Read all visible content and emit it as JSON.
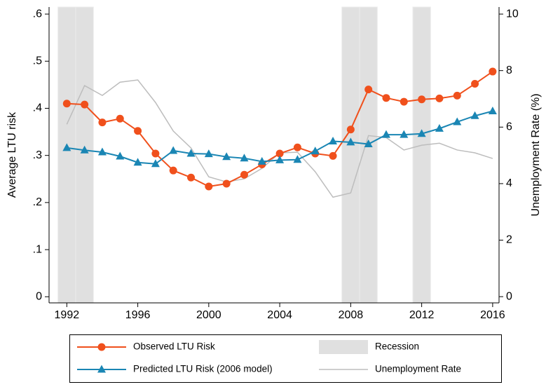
{
  "chart_data": {
    "type": "line",
    "y_label": "Average LTU risk",
    "y2_label": "Unemployment Rate (%)",
    "xlim": [
      1991,
      2016.36
    ],
    "xticks": [
      1992,
      1996,
      2000,
      2004,
      2008,
      2012,
      2016
    ],
    "ylim": [
      -0.013,
      0.615
    ],
    "yticks": [
      0,
      {
        "value": 0.1,
        "label": ".1"
      },
      {
        "value": 0.2,
        "label": ".2"
      },
      {
        "value": 0.3,
        "label": ".3"
      },
      {
        "value": 0.4,
        "label": ".4"
      },
      {
        "value": 0.5,
        "label": ".5"
      },
      {
        "value": 0.6,
        "label": ".6"
      }
    ],
    "y2lim": [
      -0.22,
      10.25
    ],
    "y2ticks": [
      0,
      2,
      4,
      6,
      8,
      10
    ],
    "x": [
      1992,
      1993,
      1994,
      1995,
      1996,
      1997,
      1998,
      1999,
      2000,
      2001,
      2002,
      2003,
      2004,
      2005,
      2006,
      2007,
      2008,
      2009,
      2010,
      2011,
      2012,
      2013,
      2014,
      2015,
      2016
    ],
    "series": [
      {
        "name": "Observed LTU Risk",
        "type": "line",
        "marker": "circle",
        "color": "#f0501c",
        "values": [
          0.41,
          0.408,
          0.37,
          0.378,
          0.352,
          0.304,
          0.268,
          0.253,
          0.234,
          0.24,
          0.259,
          0.281,
          0.304,
          0.317,
          0.304,
          0.299,
          0.355,
          0.44,
          0.422,
          0.414,
          0.419,
          0.421,
          0.427,
          0.452,
          0.478
        ]
      },
      {
        "name": "Recession",
        "type": "band",
        "color": "#e0e0e0",
        "x": [
          1992,
          1993,
          2008,
          2009,
          2012
        ]
      },
      {
        "name": "Predicted LTU Risk (2006 model)",
        "type": "line",
        "marker": "triangle",
        "color": "#1a86b4",
        "values": [
          0.316,
          0.311,
          0.307,
          0.298,
          0.285,
          0.282,
          0.31,
          0.304,
          0.303,
          0.297,
          0.294,
          0.287,
          0.29,
          0.291,
          0.309,
          0.33,
          0.328,
          0.324,
          0.344,
          0.344,
          0.346,
          0.357,
          0.371,
          0.384,
          0.394
        ]
      },
      {
        "name": "Unemployment Rate",
        "type": "line",
        "axis": "y2",
        "color": "#bdbdbd",
        "values": [
          6.1,
          7.47,
          7.12,
          7.59,
          7.67,
          6.87,
          5.86,
          5.26,
          4.24,
          4.06,
          4.17,
          4.54,
          5.09,
          5.11,
          4.42,
          3.52,
          3.67,
          5.7,
          5.63,
          5.19,
          5.36,
          5.43,
          5.19,
          5.09,
          4.89
        ]
      }
    ]
  }
}
